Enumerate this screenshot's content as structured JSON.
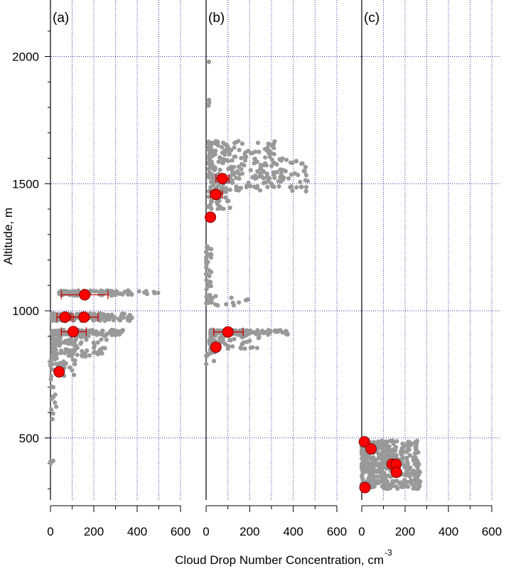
{
  "figure": {
    "ylabel": "Altitude, m",
    "xlabel": "Cloud Drop Number Concentration, cm",
    "xlabel_superscript": "-3"
  },
  "chart_data": {
    "type": "scatter",
    "ylabel": "Altitude, m",
    "xlabel": "Cloud Drop Number Concentration, cm-3",
    "ylim": [
      260,
      2200
    ],
    "yticks": [
      500,
      1000,
      1500,
      2000
    ],
    "grid": true,
    "colors": {
      "raw": "#999999",
      "mean": "#ff0000",
      "error_bar": "#cc0000",
      "grid": "#3333aa"
    },
    "panels": [
      {
        "label": "(a)",
        "xlim": [
          0,
          600
        ],
        "xticks": [
          0,
          200,
          400,
          600
        ],
        "raw_clusters": [
          {
            "y": [
              1060,
              1080
            ],
            "x": [
              40,
              500
            ],
            "n": 90
          },
          {
            "y": [
              960,
              990
            ],
            "x": [
              5,
              380
            ],
            "n": 140
          },
          {
            "y": [
              905,
              925
            ],
            "x": [
              5,
              340
            ],
            "n": 120
          },
          {
            "y": [
              820,
              905
            ],
            "x": [
              10,
              260
            ],
            "n": 110
          },
          {
            "y": [
              740,
              820
            ],
            "x": [
              0,
              120
            ],
            "n": 35
          },
          {
            "y": [
              560,
              740
            ],
            "x": [
              0,
              30
            ],
            "n": 12
          },
          {
            "y": [
              400,
              420
            ],
            "x": [
              0,
              15
            ],
            "n": 3
          }
        ],
        "means": [
          {
            "y": 1063,
            "x": 158,
            "xerr": [
              50,
              265
            ]
          },
          {
            "y": 975,
            "x": 67,
            "xerr": [
              30,
              105
            ]
          },
          {
            "y": 975,
            "x": 155,
            "xerr": [
              95,
              220
            ]
          },
          {
            "y": 918,
            "x": 105,
            "xerr": [
              50,
              165
            ]
          },
          {
            "y": 760,
            "x": 40,
            "xerr": null
          }
        ]
      },
      {
        "label": "(b)",
        "xlim": [
          0,
          600
        ],
        "xticks": [
          0,
          200,
          400,
          600
        ],
        "raw_clusters": [
          {
            "y": [
              1600,
              1670
            ],
            "x": [
              10,
              330
            ],
            "n": 80
          },
          {
            "y": [
              1520,
              1600
            ],
            "x": [
              10,
              460
            ],
            "n": 120
          },
          {
            "y": [
              1470,
              1520
            ],
            "x": [
              20,
              470
            ],
            "n": 70
          },
          {
            "y": [
              1400,
              1470
            ],
            "x": [
              5,
              120
            ],
            "n": 30
          },
          {
            "y": [
              1030,
              1260
            ],
            "x": [
              0,
              25
            ],
            "n": 40
          },
          {
            "y": [
              1020,
              1060
            ],
            "x": [
              20,
              200
            ],
            "n": 12
          },
          {
            "y": [
              905,
              925
            ],
            "x": [
              20,
              380
            ],
            "n": 130
          },
          {
            "y": [
              850,
              905
            ],
            "x": [
              15,
              250
            ],
            "n": 60
          },
          {
            "y": [
              790,
              850
            ],
            "x": [
              0,
              40
            ],
            "n": 12
          },
          {
            "y": [
              1800,
              1830
            ],
            "x": [
              10,
              20
            ],
            "n": 4
          },
          {
            "y": [
              1970,
              1980
            ],
            "x": [
              10,
              15
            ],
            "n": 1
          }
        ],
        "means": [
          {
            "y": 1520,
            "x": 75,
            "xerr": [
              45,
              105
            ]
          },
          {
            "y": 1458,
            "x": 45,
            "xerr": [
              20,
              75
            ]
          },
          {
            "y": 1368,
            "x": 20,
            "xerr": null
          },
          {
            "y": 917,
            "x": 100,
            "xerr": [
              35,
              170
            ]
          },
          {
            "y": 857,
            "x": 45,
            "xerr": null
          }
        ]
      },
      {
        "label": "(c)",
        "xlim": [
          0,
          600
        ],
        "xticks": [
          0,
          200,
          400,
          600
        ],
        "raw_clusters": [
          {
            "y": [
              300,
              490
            ],
            "x": [
              0,
              270
            ],
            "n": 420
          }
        ],
        "means": [
          {
            "y": 485,
            "x": 12,
            "xerr": null
          },
          {
            "y": 457,
            "x": 43,
            "xerr": null
          },
          {
            "y": 397,
            "x": 140,
            "xerr": null
          },
          {
            "y": 396,
            "x": 158,
            "xerr": null
          },
          {
            "y": 365,
            "x": 160,
            "xerr": null
          },
          {
            "y": 305,
            "x": 15,
            "xerr": null
          }
        ]
      }
    ]
  }
}
